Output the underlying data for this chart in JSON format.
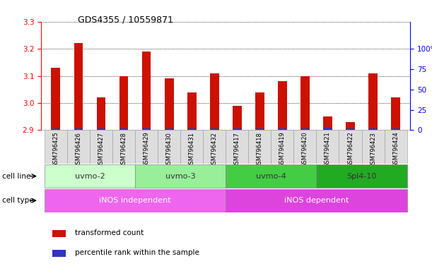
{
  "title": "GDS4355 / 10559871",
  "samples": [
    "GSM796425",
    "GSM796426",
    "GSM796427",
    "GSM796428",
    "GSM796429",
    "GSM796430",
    "GSM796431",
    "GSM796432",
    "GSM796417",
    "GSM796418",
    "GSM796419",
    "GSM796420",
    "GSM796421",
    "GSM796422",
    "GSM796423",
    "GSM796424"
  ],
  "red_values": [
    3.13,
    3.22,
    3.02,
    3.1,
    3.19,
    3.09,
    3.04,
    3.11,
    2.99,
    3.04,
    3.08,
    3.1,
    2.95,
    2.93,
    3.11,
    3.02
  ],
  "blue_heights": [
    0.006,
    0.006,
    0.006,
    0.006,
    0.006,
    0.006,
    0.006,
    0.006,
    0.006,
    0.006,
    0.006,
    0.006,
    0.012,
    0.006,
    0.006,
    0.006
  ],
  "ymin": 2.9,
  "ymax": 3.3,
  "yticks": [
    2.9,
    3.0,
    3.1,
    3.2,
    3.3
  ],
  "right_ytick_vals": [
    2.9,
    2.975,
    3.05,
    3.125,
    3.2
  ],
  "right_ytick_labels": [
    "0",
    "25",
    "50",
    "75",
    "100%"
  ],
  "bar_width": 0.4,
  "red_color": "#cc1100",
  "blue_color": "#3333bb",
  "cell_line_groups": [
    {
      "label": "uvmo-2",
      "start": 0,
      "end": 3,
      "color": "#ccffcc",
      "text_color": "#333333"
    },
    {
      "label": "uvmo-3",
      "start": 4,
      "end": 7,
      "color": "#99ee99",
      "text_color": "#333333"
    },
    {
      "label": "uvmo-4",
      "start": 8,
      "end": 11,
      "color": "#44cc44",
      "text_color": "#333333"
    },
    {
      "label": "Spl4-10",
      "start": 12,
      "end": 15,
      "color": "#22aa22",
      "text_color": "#333333"
    }
  ],
  "cell_type_groups": [
    {
      "label": "iNOS independent",
      "start": 0,
      "end": 7,
      "color": "#ee66ee",
      "text_color": "#ffffff"
    },
    {
      "label": "iNOS dependent",
      "start": 8,
      "end": 15,
      "color": "#dd44dd",
      "text_color": "#ffffff"
    }
  ]
}
